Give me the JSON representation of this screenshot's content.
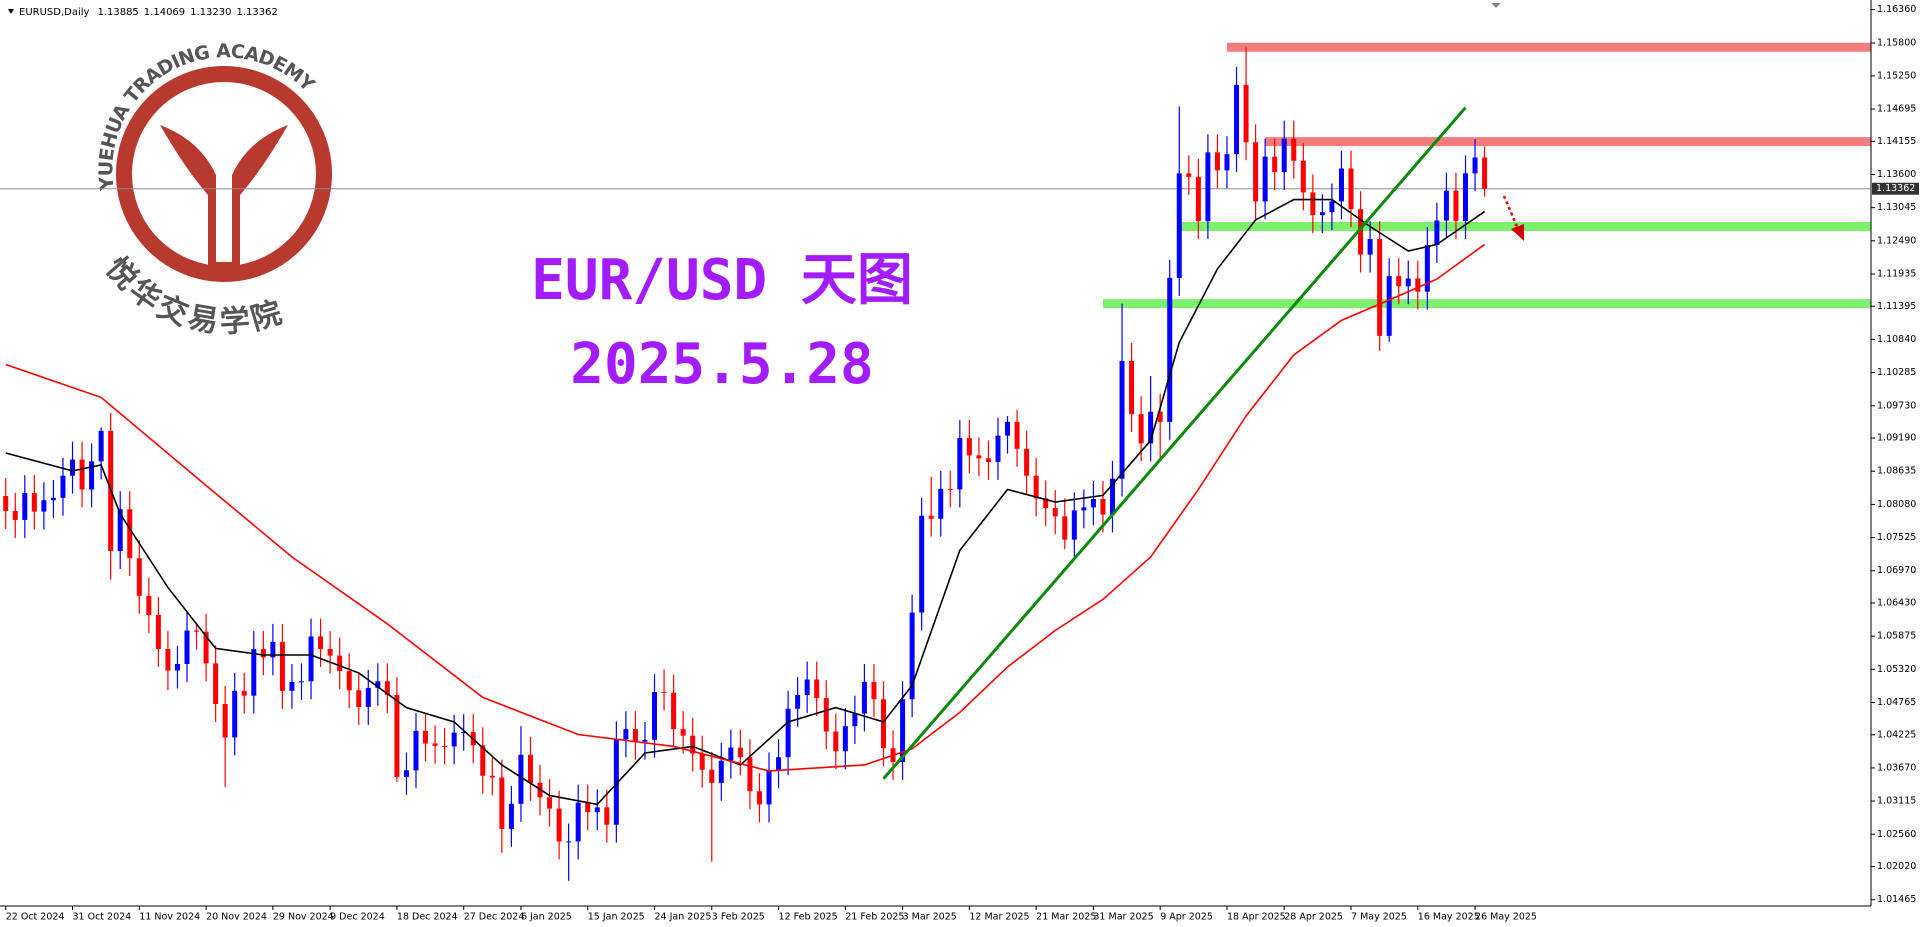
{
  "chart_data": {
    "type": "candlestick",
    "symbol": "EURUSD,Daily",
    "last_bar_labels": [
      "1.13885",
      "1.14069",
      "1.13230",
      "1.13362"
    ],
    "title": "EUR/USD 天图",
    "subtitle": "2025.5.28",
    "logo_text": "YUEHUA TRADING ACADEMY",
    "logo_cn": "悦华交易学院",
    "up_color": "#0000ff",
    "down_color": "#ff0000",
    "grid": false,
    "xlim": [
      -0.6,
      195.5
    ],
    "ylim": [
      1.0136,
      1.1652
    ],
    "yticks": [
      {
        "value": 1.1636,
        "label": "1.16360"
      },
      {
        "value": 1.158,
        "label": "1.15800"
      },
      {
        "value": 1.1525,
        "label": "1.15250"
      },
      1.14695,
      1.14155,
      {
        "value": 1.136,
        "label": "1.13600"
      },
      1.13045,
      {
        "value": 1.1249,
        "label": "1.12490"
      },
      1.11935,
      1.11395,
      {
        "value": 1.1084,
        "label": "1.10840"
      },
      1.10285,
      {
        "value": 1.0973,
        "label": "1.09730"
      },
      {
        "value": 1.0919,
        "label": "1.09190"
      },
      1.08635,
      {
        "value": 1.0808,
        "label": "1.08080"
      },
      1.07525,
      {
        "value": 1.0697,
        "label": "1.06970"
      },
      {
        "value": 1.0643,
        "label": "1.06430"
      },
      1.05875,
      {
        "value": 1.0532,
        "label": "1.05320"
      },
      1.04765,
      1.04225,
      {
        "value": 1.0367,
        "label": "1.03670"
      },
      1.03115,
      {
        "value": 1.0256,
        "label": "1.02560"
      },
      {
        "value": 1.0202,
        "label": "1.02020"
      },
      1.01465
    ],
    "xticks": [
      {
        "value": 0,
        "label": "22 Oct 2024"
      },
      {
        "value": 7,
        "label": "31 Oct 2024"
      },
      {
        "value": 14,
        "label": "11 Nov 2024"
      },
      {
        "value": 21,
        "label": "20 Nov 2024"
      },
      {
        "value": 28,
        "label": "29 Nov 2024"
      },
      {
        "value": 34,
        "label": "9 Dec 2024"
      },
      {
        "value": 41,
        "label": "18 Dec 2024"
      },
      {
        "value": 48,
        "label": "27 Dec 2024"
      },
      {
        "value": 54,
        "label": "6 Jan 2025"
      },
      {
        "value": 61,
        "label": "15 Jan 2025"
      },
      {
        "value": 68,
        "label": "24 Jan 2025"
      },
      {
        "value": 74,
        "label": "3 Feb 2025"
      },
      {
        "value": 81,
        "label": "12 Feb 2025"
      },
      {
        "value": 88,
        "label": "21 Feb 2025"
      },
      {
        "value": 94,
        "label": "3 Mar 2025"
      },
      {
        "value": 101,
        "label": "12 Mar 2025"
      },
      {
        "value": 108,
        "label": "21 Mar 2025"
      },
      {
        "value": 114,
        "label": "31 Mar 2025"
      },
      {
        "value": 121,
        "label": "9 Apr 2025"
      },
      {
        "value": 128,
        "label": "18 Apr 2025"
      },
      {
        "value": 134,
        "label": "28 Apr 2025"
      },
      {
        "value": 141,
        "label": "7 May 2025"
      },
      {
        "value": 148,
        "label": "16 May 2025"
      },
      {
        "value": 154,
        "label": "26 May 2025"
      }
    ],
    "open": [
      1.0822,
      1.0797,
      1.0782,
      1.0827,
      1.0796,
      1.0815,
      1.0819,
      1.0856,
      1.0883,
      1.0833,
      1.088,
      1.0931,
      1.073,
      1.08,
      1.0718,
      1.0655,
      1.0623,
      1.0566,
      1.053,
      1.0541,
      1.0597,
      1.0595,
      1.0542,
      1.0474,
      1.0418,
      1.0496,
      1.0488,
      1.0566,
      1.0552,
      1.0578,
      1.0496,
      1.0511,
      1.0512,
      1.0587,
      1.0566,
      1.0555,
      1.0529,
      1.0497,
      1.0469,
      1.0501,
      1.0512,
      1.0489,
      1.0352,
      1.0363,
      1.0429,
      1.0408,
      1.0404,
      1.0403,
      1.0426,
      1.0427,
      1.0405,
      1.0354,
      1.0351,
      1.0265,
      1.0307,
      1.0389,
      1.0342,
      1.0318,
      1.0299,
      1.0244,
      1.0244,
      1.0309,
      1.0293,
      1.0301,
      1.0272,
      1.0415,
      1.0432,
      1.0411,
      1.0414,
      1.0494,
      1.0493,
      1.0432,
      1.0421,
      1.0391,
      1.0364,
      1.0342,
      1.0379,
      1.0401,
      1.0385,
      1.0328,
      1.0306,
      1.0363,
      1.0385,
      1.0466,
      1.0489,
      1.0515,
      1.0484,
      1.0428,
      1.0395,
      1.0437,
      1.0458,
      1.0511,
      1.0482,
      1.04,
      1.0377,
      1.0482,
      1.0627,
      1.0789,
      1.0784,
      1.0834,
      1.0833,
      1.0919,
      1.089,
      1.0885,
      1.0879,
      1.0923,
      1.0946,
      1.0901,
      1.0856,
      1.0818,
      1.0802,
      1.0788,
      1.0749,
      1.0798,
      1.0803,
      1.0817,
      1.0791,
      1.0851,
      1.1048,
      1.0959,
      1.091,
      1.0963,
      1.0946,
      1.1187,
      1.1362,
      1.1356,
      1.1282,
      1.1397,
      1.1367,
      1.1394,
      1.151,
      1.1414,
      1.1315,
      1.139,
      1.1364,
      1.142,
      1.1383,
      1.133,
      1.1292,
      1.1297,
      1.1315,
      1.137,
      1.1302,
      1.1226,
      1.1252,
      1.109,
      1.119,
      1.1173,
      1.1186,
      1.1164,
      1.1242,
      1.1283,
      1.1333,
      1.1282,
      1.1362,
      1.13885
    ],
    "high": [
      1.0852,
      1.0827,
      1.0857,
      1.0857,
      1.0845,
      1.0849,
      1.0886,
      1.0913,
      1.0913,
      1.091,
      1.0937,
      1.0961,
      1.083,
      1.083,
      1.0748,
      1.0685,
      1.0653,
      1.0596,
      1.0571,
      1.0627,
      1.061,
      1.0625,
      1.0572,
      1.0504,
      1.0526,
      1.0526,
      1.0596,
      1.0596,
      1.0608,
      1.0608,
      1.0541,
      1.0542,
      1.0617,
      1.0617,
      1.0596,
      1.0585,
      1.0559,
      1.0527,
      1.0531,
      1.0542,
      1.0542,
      1.0519,
      1.0393,
      1.0459,
      1.0459,
      1.0438,
      1.0434,
      1.0456,
      1.0457,
      1.0457,
      1.0435,
      1.0384,
      1.0381,
      1.0337,
      1.0437,
      1.0419,
      1.0372,
      1.0348,
      1.0329,
      1.0274,
      1.0339,
      1.0339,
      1.0331,
      1.0331,
      1.0445,
      1.0462,
      1.0462,
      1.0444,
      1.0524,
      1.0532,
      1.0523,
      1.0462,
      1.0451,
      1.0421,
      1.0394,
      1.0409,
      1.0431,
      1.0431,
      1.0415,
      1.0358,
      1.0393,
      1.0415,
      1.0496,
      1.0519,
      1.0545,
      1.0545,
      1.0514,
      1.0458,
      1.0467,
      1.0488,
      1.0541,
      1.0541,
      1.0512,
      1.043,
      1.0512,
      1.0657,
      1.0819,
      1.0854,
      1.0864,
      1.0864,
      1.0949,
      1.0949,
      1.092,
      1.0915,
      1.0953,
      1.0956,
      1.0966,
      1.0931,
      1.0886,
      1.0848,
      1.0832,
      1.0818,
      1.0828,
      1.0833,
      1.0847,
      1.0847,
      1.0881,
      1.1144,
      1.1078,
      1.0989,
      1.1023,
      1.0993,
      1.1217,
      1.1474,
      1.1392,
      1.1386,
      1.1427,
      1.1427,
      1.1424,
      1.154,
      1.1573,
      1.1444,
      1.142,
      1.142,
      1.145,
      1.145,
      1.1413,
      1.136,
      1.1327,
      1.1345,
      1.14,
      1.14,
      1.1332,
      1.1282,
      1.1282,
      1.122,
      1.122,
      1.1216,
      1.1216,
      1.1272,
      1.1313,
      1.1363,
      1.1363,
      1.1392,
      1.1419,
      1.14069
    ],
    "low": [
      1.0767,
      1.0752,
      1.0752,
      1.0766,
      1.0766,
      1.0785,
      1.0789,
      1.0826,
      1.0803,
      1.0803,
      1.085,
      1.0682,
      1.07,
      1.0688,
      1.0625,
      1.0593,
      1.0536,
      1.0497,
      1.05,
      1.0511,
      1.0565,
      1.0512,
      1.0444,
      1.0335,
      1.0388,
      1.0458,
      1.0458,
      1.0522,
      1.0522,
      1.0466,
      1.0466,
      1.0481,
      1.0482,
      1.0536,
      1.0525,
      1.0499,
      1.0467,
      1.0439,
      1.0439,
      1.0471,
      1.0459,
      1.0343,
      1.0322,
      1.0333,
      1.0378,
      1.0374,
      1.0373,
      1.0373,
      1.0396,
      1.0375,
      1.0324,
      1.0321,
      1.0225,
      1.0235,
      1.0277,
      1.0312,
      1.0288,
      1.0269,
      1.0214,
      1.0178,
      1.0214,
      1.0263,
      1.0263,
      1.0242,
      1.0242,
      1.0385,
      1.0381,
      1.0381,
      1.0384,
      1.0463,
      1.0402,
      1.0391,
      1.0361,
      1.0334,
      1.021,
      1.0312,
      1.0349,
      1.0355,
      1.0298,
      1.0276,
      1.0276,
      1.0333,
      1.0355,
      1.0436,
      1.0459,
      1.0454,
      1.0398,
      1.0365,
      1.0365,
      1.0407,
      1.0428,
      1.0452,
      1.037,
      1.0347,
      1.0347,
      1.0452,
      1.0597,
      1.0754,
      1.0754,
      1.0803,
      1.0803,
      1.086,
      1.0855,
      1.0849,
      1.0849,
      1.0893,
      1.0871,
      1.0826,
      1.0788,
      1.0772,
      1.0758,
      1.0733,
      1.0719,
      1.0768,
      1.0773,
      1.0761,
      1.0761,
      1.0821,
      1.0929,
      1.088,
      1.088,
      1.0886,
      1.0916,
      1.1157,
      1.1326,
      1.1252,
      1.1252,
      1.1337,
      1.1337,
      1.1364,
      1.1384,
      1.1285,
      1.1285,
      1.1334,
      1.1334,
      1.1353,
      1.13,
      1.1262,
      1.1262,
      1.1267,
      1.1285,
      1.1272,
      1.1196,
      1.1196,
      1.1065,
      1.108,
      1.1143,
      1.1143,
      1.1134,
      1.1134,
      1.1212,
      1.1253,
      1.1252,
      1.1252,
      1.1332,
      1.1323
    ],
    "close": [
      1.0797,
      1.0782,
      1.0827,
      1.0796,
      1.0815,
      1.0819,
      1.0856,
      1.0883,
      1.0833,
      1.088,
      1.0931,
      1.073,
      1.08,
      1.0718,
      1.0655,
      1.0623,
      1.0566,
      1.053,
      1.0541,
      1.0597,
      1.0595,
      1.0542,
      1.0474,
      1.0418,
      1.0496,
      1.0488,
      1.0566,
      1.0552,
      1.0578,
      1.0496,
      1.0511,
      1.0512,
      1.0587,
      1.0566,
      1.0555,
      1.0529,
      1.0497,
      1.0469,
      1.0501,
      1.0512,
      1.0489,
      1.0352,
      1.0363,
      1.0429,
      1.0408,
      1.0404,
      1.0403,
      1.0426,
      1.0427,
      1.0405,
      1.0354,
      1.0351,
      1.0265,
      1.0307,
      1.0389,
      1.0342,
      1.0318,
      1.0299,
      1.0244,
      1.0244,
      1.0309,
      1.0293,
      1.0301,
      1.0272,
      1.0415,
      1.0432,
      1.0411,
      1.0414,
      1.0494,
      1.0493,
      1.0432,
      1.0421,
      1.0391,
      1.0364,
      1.0342,
      1.0379,
      1.0401,
      1.0385,
      1.0328,
      1.0306,
      1.0363,
      1.0385,
      1.0466,
      1.0489,
      1.0515,
      1.0484,
      1.0428,
      1.0395,
      1.0437,
      1.0458,
      1.0511,
      1.0482,
      1.04,
      1.0377,
      1.0482,
      1.0627,
      1.0789,
      1.0784,
      1.0834,
      1.0833,
      1.0919,
      1.089,
      1.0885,
      1.0879,
      1.0923,
      1.0946,
      1.0901,
      1.0856,
      1.0818,
      1.0802,
      1.0788,
      1.0749,
      1.0798,
      1.0803,
      1.0817,
      1.0791,
      1.0851,
      1.1048,
      1.0959,
      1.091,
      1.0963,
      1.0946,
      1.1187,
      1.1362,
      1.1356,
      1.1282,
      1.1397,
      1.1367,
      1.1394,
      1.151,
      1.1414,
      1.1315,
      1.139,
      1.1364,
      1.142,
      1.1383,
      1.133,
      1.1292,
      1.1297,
      1.1315,
      1.137,
      1.1302,
      1.1226,
      1.1252,
      1.109,
      1.119,
      1.1173,
      1.1186,
      1.1164,
      1.1242,
      1.1283,
      1.1333,
      1.1282,
      1.1362,
      1.13885,
      1.13362
    ],
    "moving_averages": [
      {
        "color": "#000000",
        "x": [
          0,
          7,
          10,
          12,
          17,
          22,
          27,
          32,
          37,
          42,
          47,
          52,
          57,
          62,
          67,
          72,
          77,
          82,
          87,
          92,
          95,
          100,
          105,
          110,
          115,
          120,
          123,
          127,
          131,
          135,
          139,
          143,
          147,
          150,
          155
        ],
        "values": [
          1.0894,
          1.0864,
          1.0874,
          1.0792,
          1.0669,
          1.0567,
          1.0556,
          1.0556,
          1.0526,
          1.0468,
          1.0444,
          1.0372,
          1.0321,
          1.0306,
          1.0392,
          1.0403,
          1.0372,
          1.0444,
          1.0468,
          1.0444,
          1.0505,
          1.0731,
          1.0833,
          1.0812,
          1.0823,
          1.0915,
          1.1079,
          1.1202,
          1.1284,
          1.1318,
          1.1318,
          1.1273,
          1.1232,
          1.1243,
          1.1298
        ]
      },
      {
        "color": "#ff0000",
        "x": [
          0,
          10,
          20,
          30,
          40,
          50,
          60,
          70,
          80,
          90,
          95,
          100,
          105,
          110,
          115,
          120,
          125,
          130,
          135,
          140,
          145,
          150,
          155
        ],
        "values": [
          1.1042,
          1.0987,
          1.0853,
          1.072,
          1.0608,
          1.0485,
          1.0423,
          1.0403,
          1.0362,
          1.0372,
          1.0399,
          1.046,
          1.0536,
          1.0597,
          1.0649,
          1.072,
          1.0833,
          1.0956,
          1.1058,
          1.1116,
          1.115,
          1.1185,
          1.1243
        ]
      }
    ],
    "levels": [
      {
        "value": 1.1573,
        "start": 128,
        "color": "#f47c7c"
      },
      {
        "value": 1.1415,
        "start": 132,
        "color": "#f47c7c"
      },
      {
        "value": 1.1273,
        "start": 123,
        "color": "#7cf06c"
      },
      {
        "value": 1.1144,
        "start": 115,
        "color": "#7cf06c"
      }
    ],
    "trendline": {
      "color": "#0a8a0a",
      "x": [
        92,
        153
      ],
      "values": [
        1.0349,
        1.1472
      ]
    }
  }
}
